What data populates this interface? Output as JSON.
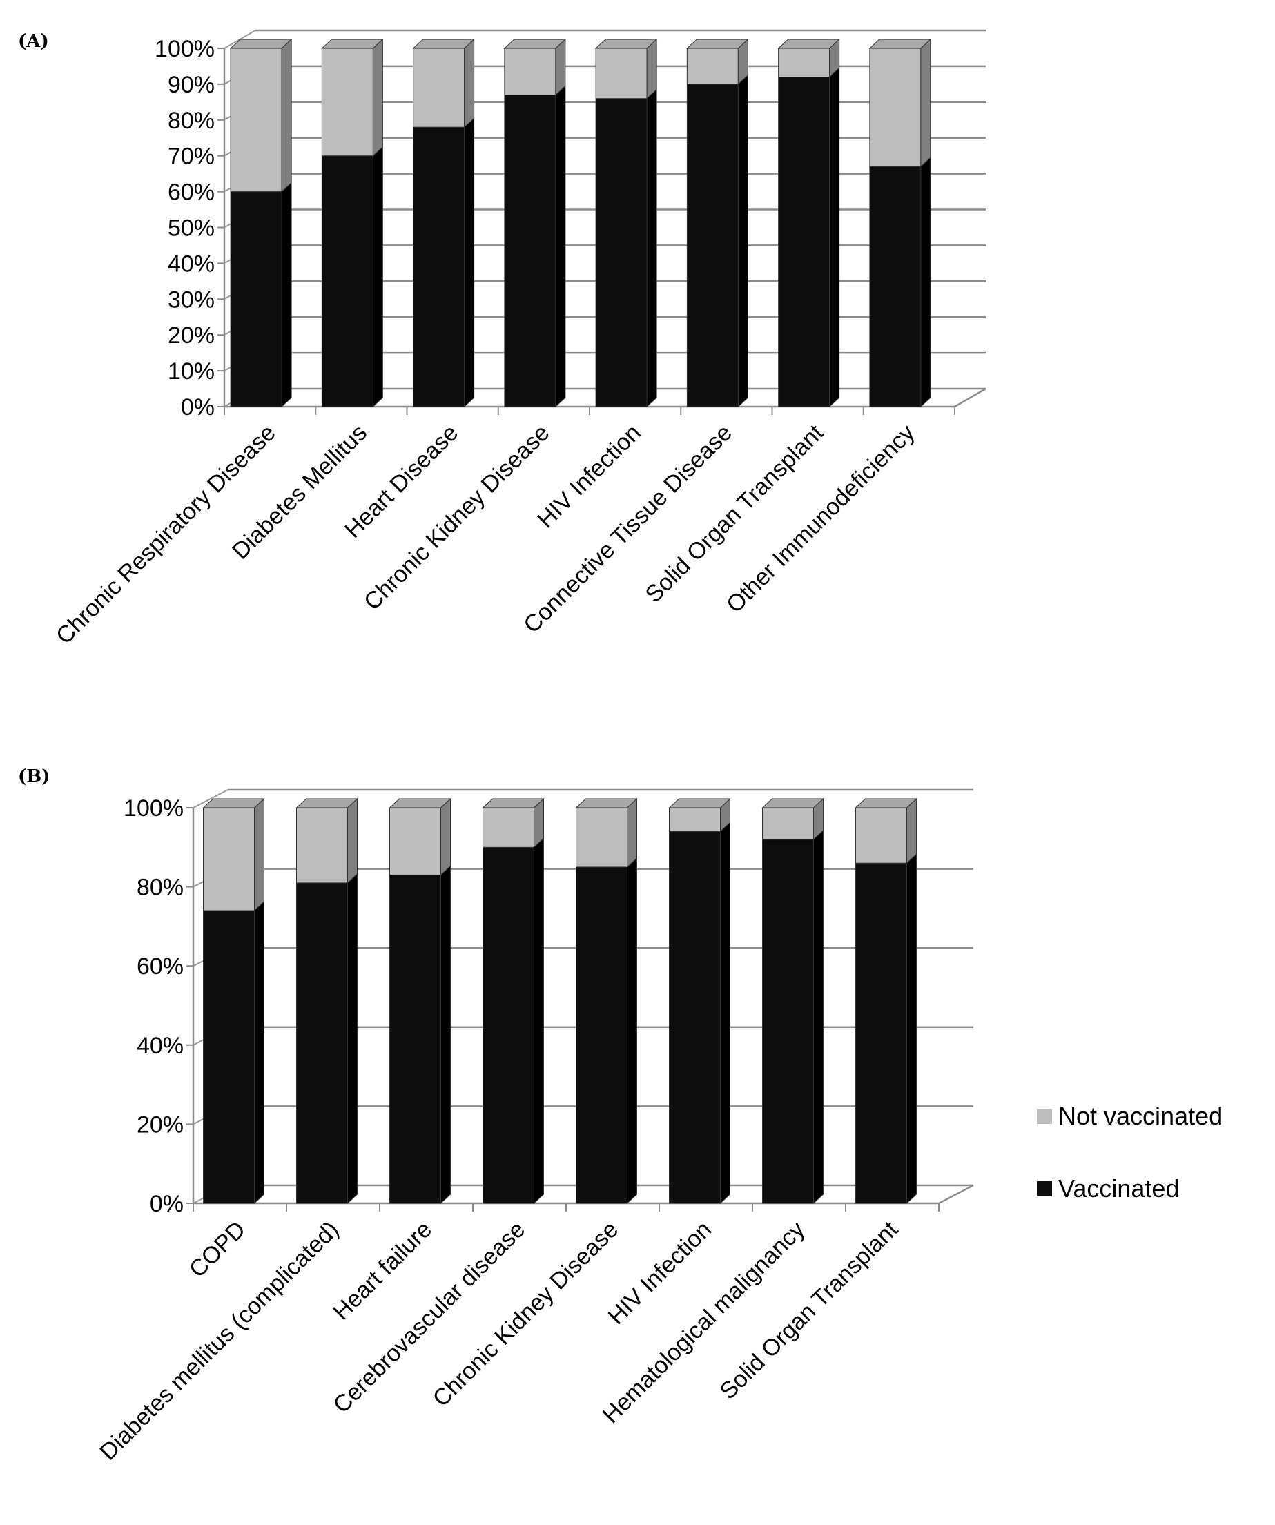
{
  "legend": {
    "items": [
      {
        "label": "Not vaccinated",
        "color": "#bdbdbd"
      },
      {
        "label": "Vaccinated",
        "color": "#0d0d0d"
      }
    ]
  },
  "chart_data": [
    {
      "type": "bar",
      "stacked": true,
      "three_d": true,
      "panel": "(A)",
      "categories": [
        "Chronic Respiratory Disease",
        "Diabetes Mellitus",
        "Heart Disease",
        "Chronic Kidney Disease",
        "HIV Infection",
        "Connective Tissue Disease",
        "Solid Organ Transplant",
        "Other Immunodeficiency"
      ],
      "series": [
        {
          "name": "Vaccinated",
          "color": "#0d0d0d",
          "values": [
            60,
            70,
            78,
            87,
            86,
            90,
            92,
            67
          ]
        },
        {
          "name": "Not vaccinated",
          "color": "#bdbdbd",
          "values": [
            40,
            30,
            22,
            13,
            14,
            10,
            8,
            33
          ]
        }
      ],
      "yticks": [
        "0%",
        "10%",
        "20%",
        "30%",
        "40%",
        "50%",
        "60%",
        "70%",
        "80%",
        "90%",
        "100%"
      ],
      "ylim": [
        0,
        100
      ],
      "grid": true
    },
    {
      "type": "bar",
      "stacked": true,
      "three_d": true,
      "panel": "(B)",
      "categories": [
        "COPD",
        "Diabetes mellitus (complicated)",
        "Heart failure",
        "Cerebrovascular disease",
        "Chronic Kidney Disease",
        "HIV Infection",
        "Hematological malignancy",
        "Solid Organ Transplant"
      ],
      "series": [
        {
          "name": "Vaccinated",
          "color": "#0d0d0d",
          "values": [
            74,
            81,
            83,
            90,
            85,
            94,
            92,
            86
          ]
        },
        {
          "name": "Not vaccinated",
          "color": "#bdbdbd",
          "values": [
            26,
            19,
            17,
            10,
            15,
            6,
            8,
            14
          ]
        }
      ],
      "yticks": [
        "0%",
        "20%",
        "40%",
        "60%",
        "80%",
        "100%"
      ],
      "ylim": [
        0,
        100
      ],
      "grid": true,
      "legend_position": "right"
    }
  ]
}
